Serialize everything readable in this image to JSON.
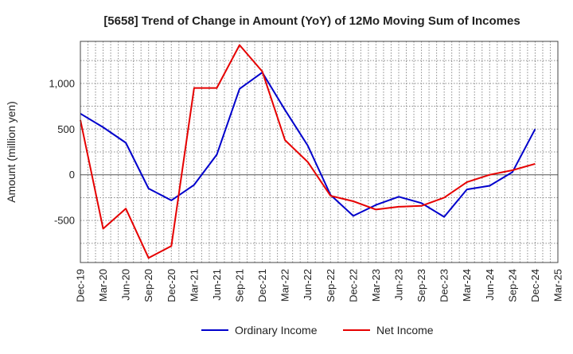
{
  "chart_data": {
    "type": "line",
    "title": "[5658]  Trend of Change in Amount (YoY) of 12Mo Moving Sum of Incomes",
    "xlabel": "",
    "ylabel": "Amount (million yen)",
    "x": [
      "Dec-19",
      "Mar-20",
      "Jun-20",
      "Sep-20",
      "Dec-20",
      "Mar-21",
      "Jun-21",
      "Sep-21",
      "Dec-21",
      "Mar-22",
      "Jun-22",
      "Sep-22",
      "Dec-22",
      "Mar-23",
      "Jun-23",
      "Sep-23",
      "Dec-23",
      "Mar-24",
      "Jun-24",
      "Sep-24",
      "Dec-24",
      "Mar-25"
    ],
    "ylim": [
      -960,
      1460
    ],
    "yticks": [
      -500,
      0,
      500,
      1000
    ],
    "ytick_labels": [
      "-500",
      "0",
      "500",
      "1,000"
    ],
    "grid": true,
    "legend_position": "bottom",
    "series": [
      {
        "name": "Ordinary Income",
        "color": "#0000cc",
        "values": [
          670,
          520,
          350,
          -150,
          -280,
          -110,
          220,
          940,
          1120,
          710,
          320,
          -220,
          -450,
          -330,
          -240,
          -310,
          -460,
          -160,
          -120,
          30,
          500,
          null
        ]
      },
      {
        "name": "Net Income",
        "color": "#e60000",
        "values": [
          600,
          -590,
          -370,
          -910,
          -780,
          950,
          950,
          1420,
          1130,
          380,
          140,
          -230,
          -290,
          -380,
          -350,
          -340,
          -250,
          -80,
          0,
          50,
          120,
          null
        ]
      }
    ]
  }
}
